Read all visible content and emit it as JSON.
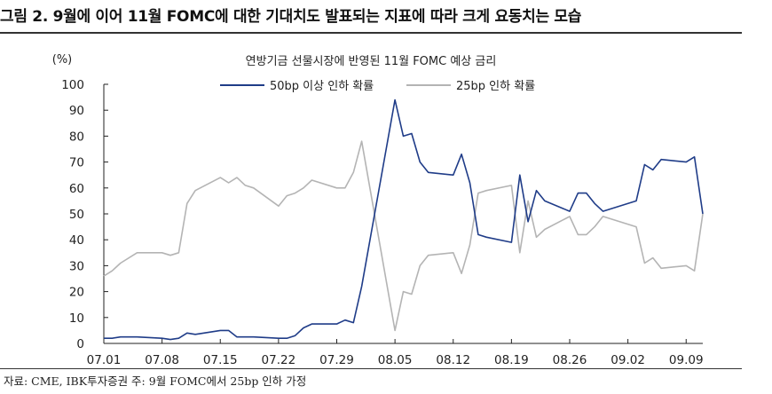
{
  "figure": {
    "title": "그림 2. 9월에 이어 11월 FOMC에 대한 기대치도 발표되는 지표에 따라 크게 요동치는 모습",
    "source": "자료: CME, IBK투자증권 주: 9월 FOMC에서 25bp 인하 가정"
  },
  "chart_data": {
    "type": "line",
    "title": "연방기금 선물시장에 반영된 11월 FOMC 예상 금리",
    "ylabel": "(%)",
    "ylim": [
      0,
      100
    ],
    "yticks": [
      0,
      10,
      20,
      30,
      40,
      50,
      60,
      70,
      80,
      90,
      100
    ],
    "x_start": "07.01",
    "x_end": "09.11",
    "xticks": [
      "07.01",
      "07.08",
      "07.15",
      "07.22",
      "07.29",
      "08.05",
      "08.12",
      "08.19",
      "08.26",
      "09.02",
      "09.09"
    ],
    "legend_position": "top",
    "series": [
      {
        "name": "50bp 이상 인하 확률",
        "color": "#1f3c88",
        "x": [
          "07.01",
          "07.02",
          "07.03",
          "07.05",
          "07.08",
          "07.09",
          "07.10",
          "07.11",
          "07.12",
          "07.15",
          "07.16",
          "07.17",
          "07.18",
          "07.19",
          "07.22",
          "07.23",
          "07.24",
          "07.25",
          "07.26",
          "07.29",
          "07.30",
          "07.31",
          "08.01",
          "08.05",
          "08.06",
          "08.07",
          "08.08",
          "08.09",
          "08.12",
          "08.13",
          "08.14",
          "08.15",
          "08.16",
          "08.19",
          "08.20",
          "08.21",
          "08.22",
          "08.23",
          "08.26",
          "08.27",
          "08.28",
          "08.29",
          "08.30",
          "09.03",
          "09.04",
          "09.05",
          "09.06",
          "09.09",
          "09.10",
          "09.11"
        ],
        "values": [
          2,
          2,
          2.5,
          2.5,
          2,
          1.5,
          2,
          4,
          3.5,
          5,
          5,
          2.5,
          2.5,
          2.5,
          2,
          2,
          3,
          6,
          7.5,
          7.5,
          9,
          8,
          22,
          94,
          80,
          81,
          70,
          66,
          65,
          73,
          62,
          42,
          41,
          39,
          65,
          47,
          59,
          55,
          51,
          58,
          58,
          54,
          51,
          55,
          69,
          67,
          71,
          70,
          72,
          50
        ]
      },
      {
        "name": "25bp 인하 확률",
        "color": "#b4b4b4",
        "x": [
          "07.01",
          "07.02",
          "07.03",
          "07.05",
          "07.08",
          "07.09",
          "07.10",
          "07.11",
          "07.12",
          "07.15",
          "07.16",
          "07.17",
          "07.18",
          "07.19",
          "07.22",
          "07.23",
          "07.24",
          "07.25",
          "07.26",
          "07.29",
          "07.30",
          "07.31",
          "08.01",
          "08.05",
          "08.06",
          "08.07",
          "08.08",
          "08.09",
          "08.12",
          "08.13",
          "08.14",
          "08.15",
          "08.16",
          "08.19",
          "08.20",
          "08.21",
          "08.22",
          "08.23",
          "08.26",
          "08.27",
          "08.28",
          "08.29",
          "08.30",
          "09.03",
          "09.04",
          "09.05",
          "09.06",
          "09.09",
          "09.10",
          "09.11"
        ],
        "values": [
          26,
          28,
          31,
          35,
          35,
          34,
          35,
          54,
          59,
          64,
          62,
          64,
          61,
          60,
          53,
          57,
          58,
          60,
          63,
          60,
          60,
          66,
          78,
          5,
          20,
          19,
          30,
          34,
          35,
          27,
          38,
          58,
          59,
          61,
          35,
          55,
          41,
          44,
          49,
          42,
          42,
          45,
          49,
          45,
          31,
          33,
          29,
          30,
          28,
          50
        ]
      }
    ]
  }
}
